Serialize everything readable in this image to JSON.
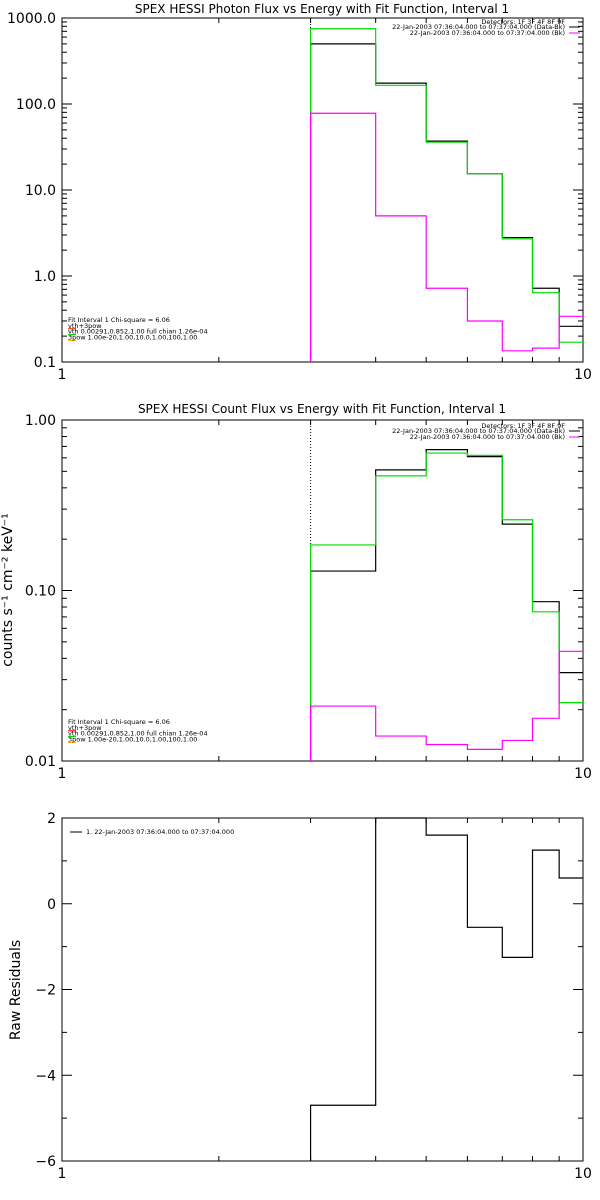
{
  "chart_data": [
    {
      "type": "line",
      "step": true,
      "title": "SPEX HESSI Photon Flux vs Energy with Fit Function, Interval 1",
      "xlabel": "",
      "ylabel": "",
      "xscale": "log",
      "yscale": "log",
      "xlim": [
        1,
        10
      ],
      "ylim": [
        0.1,
        1000
      ],
      "x_ticks": [
        "1",
        "10"
      ],
      "y_ticks": [
        "0.1",
        "1.0",
        "10.0",
        "100.0",
        "1000.0"
      ],
      "x_tick_values": [
        1,
        10
      ],
      "y_tick_values": [
        0.1,
        1,
        10,
        100,
        1000
      ],
      "fit_start_x": 3,
      "edges": [
        3,
        4,
        5,
        6,
        7,
        8,
        9,
        10
      ],
      "info_lines": [
        "Detectors: 1F 3F 4F 8F 9F",
        "22-Jan-2003 07:36:04.000 to 07:37:04.000 (Data-Bk)",
        "22-Jan-2003 07:36:04.000 to 07:37:04.000 (Bk)"
      ],
      "info_colors": [
        "",
        "#000000",
        "#ff00ff"
      ],
      "legend": [
        "Fit Interval 1    Chi-square = 6.06",
        "vth+3pow",
        "vth 0.00291,0.852,1.00  full chian 1.26e-04",
        "3pow 1.00e-20,1.00,10.0,1.00,100,1.00"
      ],
      "legend_colors": [
        "",
        "#ff0000",
        "#00cc00",
        "#ffaa00"
      ],
      "series": [
        {
          "name": "Data-Bk",
          "color": "#000000",
          "values": [
            500,
            175,
            37,
            15.5,
            2.8,
            0.72,
            0.26
          ]
        },
        {
          "name": "vth+3pow",
          "color": "#00dd00",
          "values": [
            750,
            165,
            36,
            15.5,
            2.7,
            0.64,
            0.17
          ]
        },
        {
          "name": "Bk",
          "color": "#ff00ff",
          "values": [
            78,
            5.0,
            0.72,
            0.3,
            0.135,
            0.145,
            0.34
          ]
        }
      ]
    },
    {
      "type": "line",
      "step": true,
      "title": "SPEX HESSI Count Flux vs Energy with Fit Function, Interval 1",
      "xlabel": "",
      "ylabel": "counts s⁻¹ cm⁻² keV⁻¹",
      "xscale": "log",
      "yscale": "log",
      "xlim": [
        1,
        10
      ],
      "ylim": [
        0.01,
        1
      ],
      "x_ticks": [
        "1",
        "10"
      ],
      "y_ticks": [
        "0.01",
        "0.10",
        "1.00"
      ],
      "x_tick_values": [
        1,
        10
      ],
      "y_tick_values": [
        0.01,
        0.1,
        1
      ],
      "fit_start_x": 3,
      "edges": [
        3,
        4,
        5,
        6,
        7,
        8,
        9,
        10
      ],
      "info_lines": [
        "Detectors: 1F 3F 4F 8F 9F",
        "22-Jan-2003 07:36:04.000 to 07:37:04.000 (Data-Bk)",
        "22-Jan-2003 07:36:04.000 to 07:37:04.000 (Bk)"
      ],
      "info_colors": [
        "",
        "#000000",
        "#ff00ff"
      ],
      "legend": [
        "Fit Interval 1    Chi-square = 6.06",
        "vth+3pow",
        "vth 0.00291,0.852,1.00  full chian 1.26e-04",
        "3pow 1.00e-20,1.00,10.0,1.00,100,1.00"
      ],
      "legend_colors": [
        "",
        "#ff0000",
        "#00cc00",
        "#ffaa00"
      ],
      "series": [
        {
          "name": "Data-Bk",
          "color": "#000000",
          "values": [
            0.13,
            0.51,
            0.67,
            0.61,
            0.245,
            0.086,
            0.033
          ]
        },
        {
          "name": "vth+3pow",
          "color": "#00dd00",
          "values": [
            0.185,
            0.47,
            0.64,
            0.62,
            0.26,
            0.075,
            0.022
          ]
        },
        {
          "name": "Bk",
          "color": "#ff00ff",
          "values": [
            0.021,
            0.014,
            0.0125,
            0.0117,
            0.0132,
            0.0178,
            0.044
          ]
        }
      ]
    },
    {
      "type": "line",
      "step": true,
      "title": "",
      "xlabel": "",
      "ylabel": "Raw Residuals",
      "xscale": "log",
      "yscale": "linear",
      "xlim": [
        1,
        10
      ],
      "ylim": [
        -6,
        2
      ],
      "x_ticks": [
        "1",
        "10"
      ],
      "y_ticks": [
        "−6",
        "−4",
        "−2",
        "0",
        "2"
      ],
      "x_tick_values": [
        1,
        10
      ],
      "y_tick_values": [
        -6,
        -4,
        -2,
        0,
        2
      ],
      "edges": [
        3,
        4,
        5,
        6,
        7,
        8,
        9,
        10
      ],
      "legend": [
        "1. 22-Jan-2003 07:36:04.000 to 07:37:04.000"
      ],
      "legend_colors": [
        "#000000"
      ],
      "series": [
        {
          "name": "",
          "color": "#000000",
          "values": [
            -4.7,
            2.0,
            1.6,
            -0.55,
            -1.25,
            1.25,
            0.6
          ]
        }
      ]
    }
  ]
}
